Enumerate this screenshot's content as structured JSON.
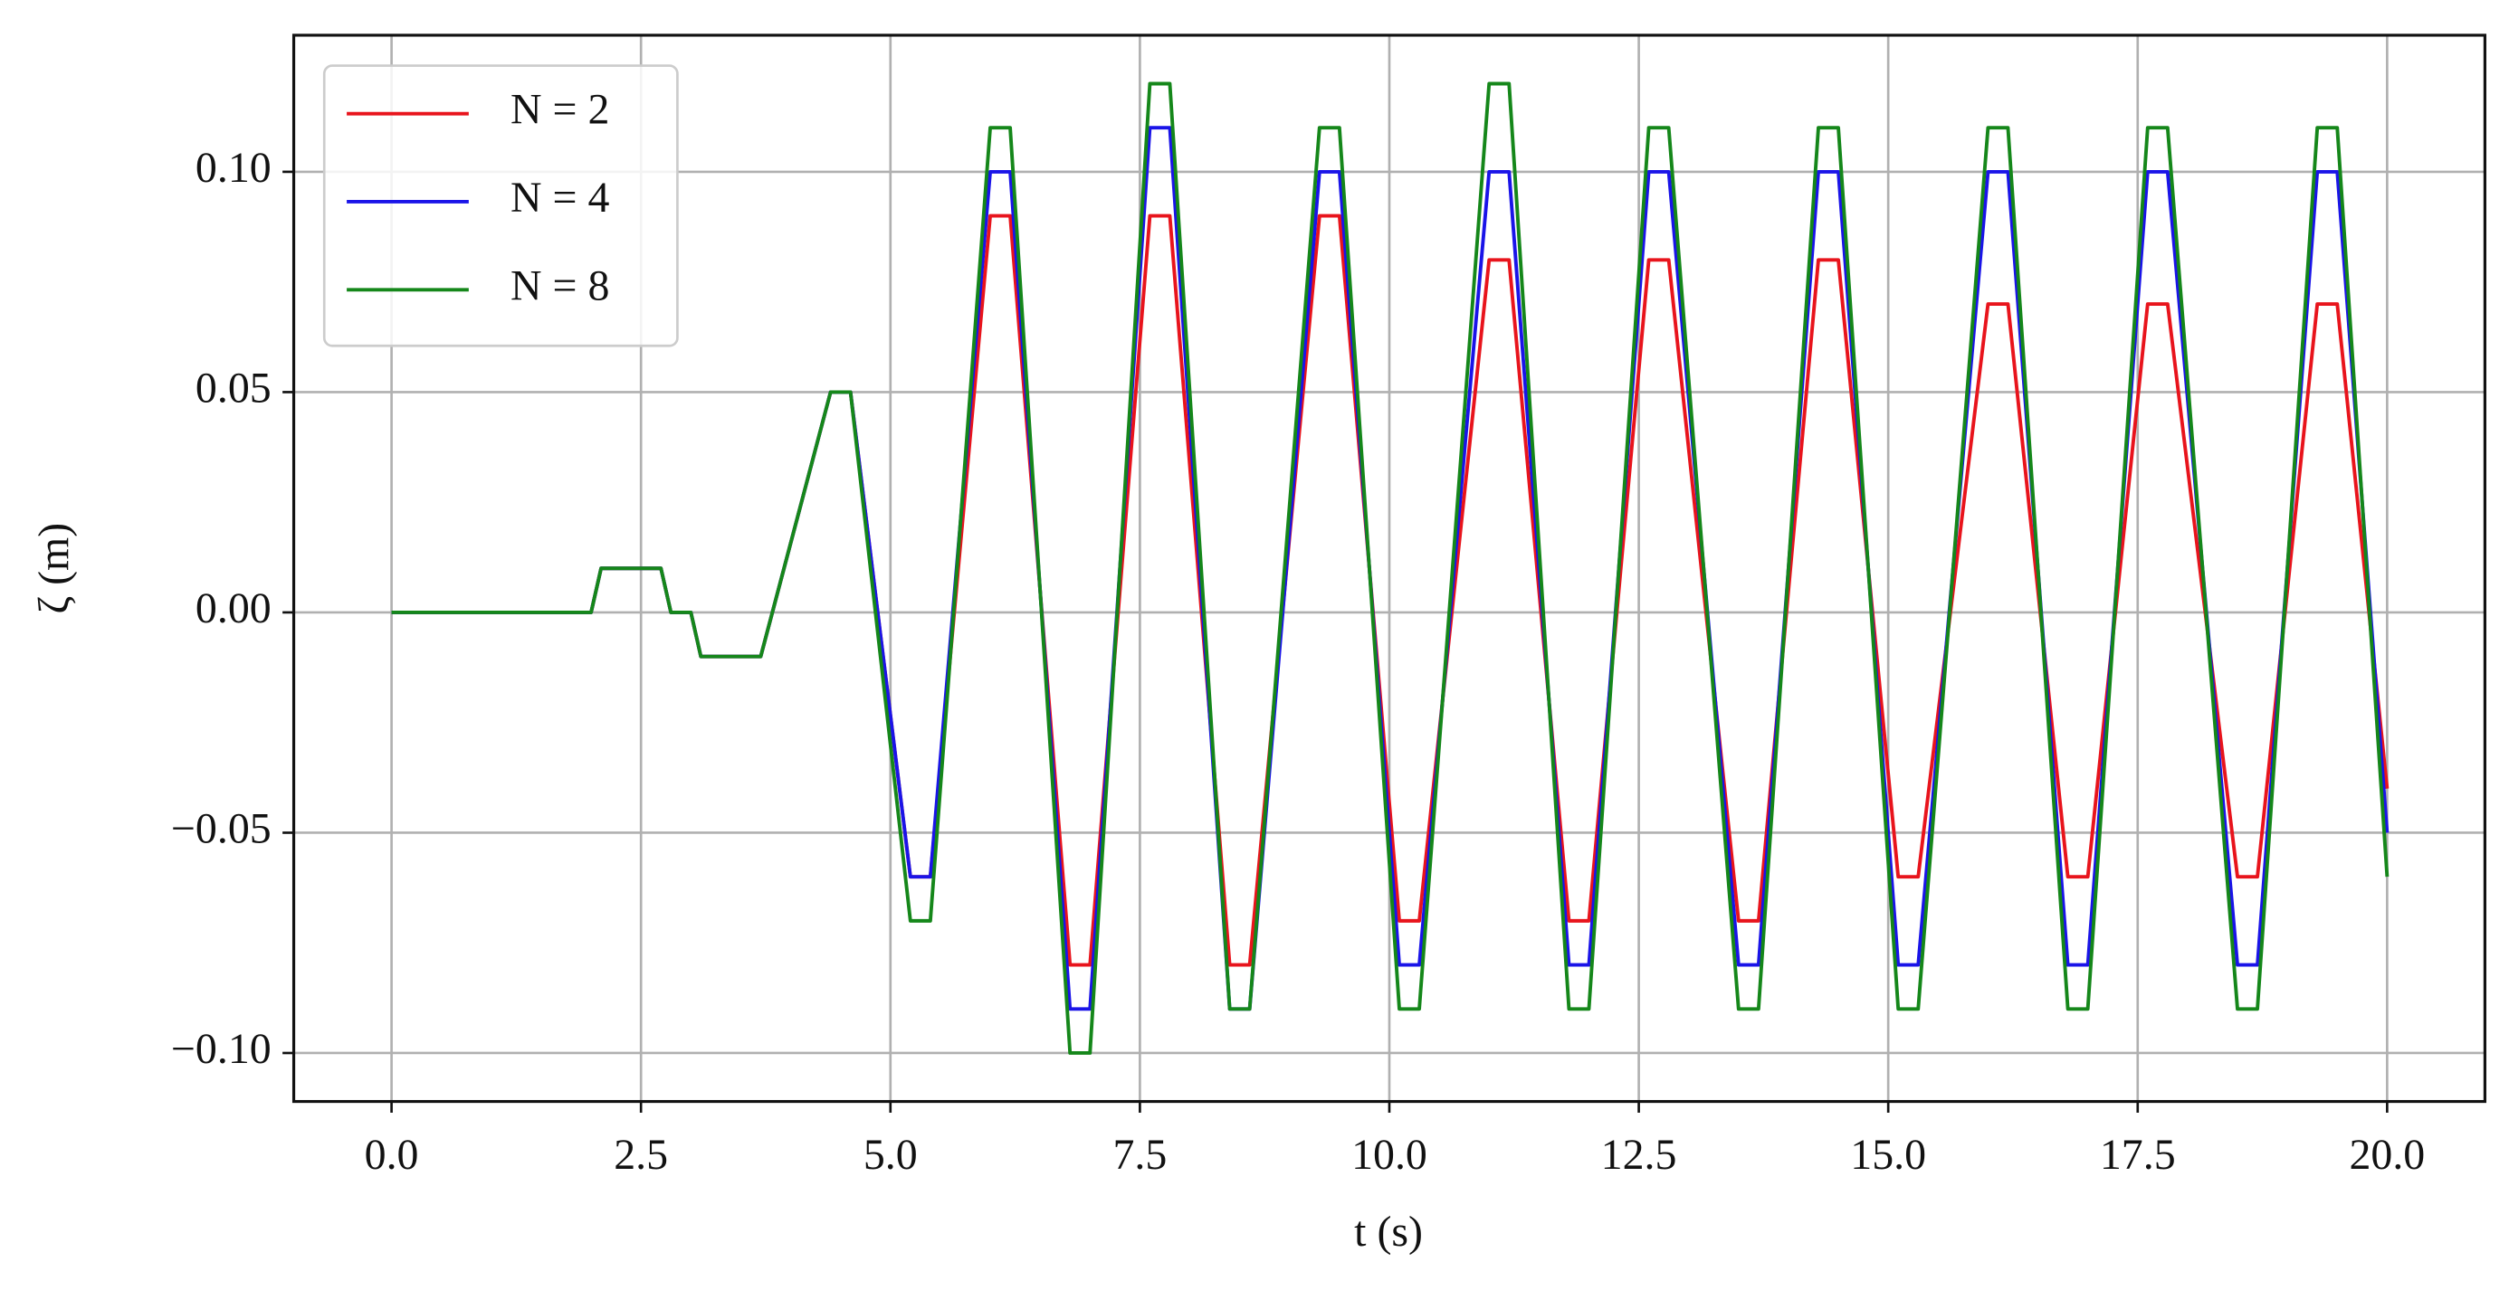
{
  "chart_data": {
    "type": "line",
    "xlabel": "t (s)",
    "ylabel": "ζ (m)",
    "x": [
      0,
      2.0,
      2.1,
      2.7,
      2.8,
      3.0,
      3.1,
      3.7,
      4.4,
      4.6,
      5.2,
      5.4,
      6.0,
      6.2,
      6.8,
      7.0,
      7.6,
      7.8,
      8.4,
      8.6,
      9.3,
      9.5,
      10.1,
      10.3,
      11.0,
      11.2,
      11.8,
      12.0,
      12.6,
      12.8,
      13.5,
      13.7,
      14.3,
      14.5,
      15.1,
      15.3,
      16.0,
      16.2,
      16.8,
      17.0,
      17.6,
      17.8,
      18.5,
      18.7,
      19.3,
      19.5,
      20.0
    ],
    "series": [
      {
        "name": "N = 2",
        "color": "#e8141c",
        "values": [
          0,
          0,
          0.01,
          0.01,
          0,
          0,
          -0.01,
          -0.01,
          0.05,
          0.05,
          -0.06,
          -0.06,
          0.09,
          0.09,
          -0.08,
          -0.08,
          0.09,
          0.09,
          -0.08,
          -0.08,
          0.09,
          0.09,
          -0.07,
          -0.07,
          0.08,
          0.08,
          -0.07,
          -0.07,
          0.08,
          0.08,
          -0.07,
          -0.07,
          0.08,
          0.08,
          -0.06,
          -0.06,
          0.07,
          0.07,
          -0.06,
          -0.06,
          0.07,
          0.07,
          -0.06,
          -0.06,
          0.07,
          0.07,
          -0.04
        ]
      },
      {
        "name": "N = 4",
        "color": "#1a14e8",
        "values": [
          0,
          0,
          0.01,
          0.01,
          0,
          0,
          -0.01,
          -0.01,
          0.05,
          0.05,
          -0.06,
          -0.06,
          0.1,
          0.1,
          -0.09,
          -0.09,
          0.11,
          0.11,
          -0.09,
          -0.09,
          0.1,
          0.1,
          -0.08,
          -0.08,
          0.1,
          0.1,
          -0.08,
          -0.08,
          0.1,
          0.1,
          -0.08,
          -0.08,
          0.1,
          0.1,
          -0.08,
          -0.08,
          0.1,
          0.1,
          -0.08,
          -0.08,
          0.1,
          0.1,
          -0.08,
          -0.08,
          0.1,
          0.1,
          -0.05
        ]
      },
      {
        "name": "N = 8",
        "color": "#15871a",
        "values": [
          0,
          0,
          0.01,
          0.01,
          0,
          0,
          -0.01,
          -0.01,
          0.05,
          0.05,
          -0.07,
          -0.07,
          0.11,
          0.11,
          -0.1,
          -0.1,
          0.12,
          0.12,
          -0.09,
          -0.09,
          0.11,
          0.11,
          -0.09,
          -0.09,
          0.12,
          0.12,
          -0.09,
          -0.09,
          0.11,
          0.11,
          -0.09,
          -0.09,
          0.11,
          0.11,
          -0.09,
          -0.09,
          0.11,
          0.11,
          -0.09,
          -0.09,
          0.11,
          0.11,
          -0.09,
          -0.09,
          0.11,
          0.11,
          -0.06
        ]
      }
    ],
    "xlim": [
      -0.98,
      20.98
    ],
    "ylim": [
      -0.111,
      0.131
    ],
    "xticks": [
      {
        "value": 0,
        "label": "0.0"
      },
      2.5,
      {
        "value": 5,
        "label": "5.0"
      },
      7.5,
      {
        "value": 10,
        "label": "10.0"
      },
      12.5,
      {
        "value": 15,
        "label": "15.0"
      },
      17.5,
      {
        "value": 20,
        "label": "20.0"
      }
    ],
    "yticks": [
      {
        "value": -0.1,
        "label": "−0.10"
      },
      {
        "value": -0.05,
        "label": "−0.05"
      },
      {
        "value": 0,
        "label": "0.00"
      },
      {
        "value": 0.05,
        "label": "0.05"
      },
      {
        "value": 0.1,
        "label": "0.10"
      }
    ],
    "grid": true,
    "legend": "upper left"
  }
}
